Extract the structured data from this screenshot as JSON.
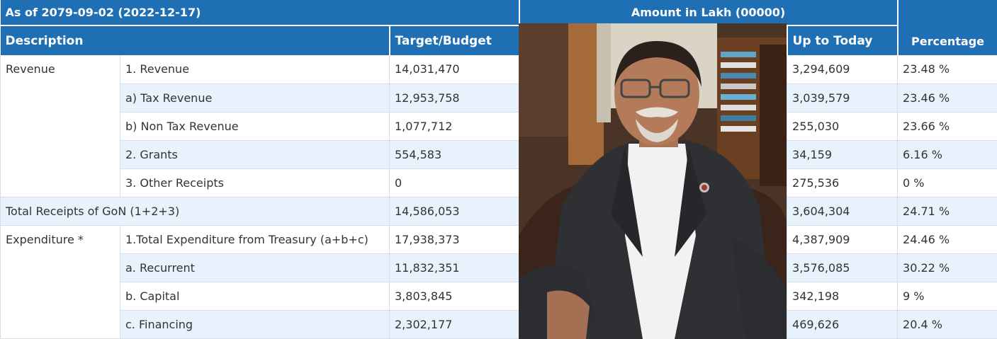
{
  "header": {
    "as_of": "As of 2079-09-02 (2022-12-17)",
    "amount_unit": "Amount in Lakh (00000)"
  },
  "columns": {
    "description": "Description",
    "target": "Target/Budget",
    "up_to_today": "Up to Today",
    "percentage": "Percentage"
  },
  "groups": {
    "revenue": "Revenue",
    "total": "Total Receipts of GoN (1+2+3)",
    "expenditure": "Expenditure *"
  },
  "rows": [
    {
      "item": "1. Revenue",
      "target": "14,031,470",
      "today": "3,294,609",
      "pct": "23.48 %"
    },
    {
      "item": "a) Tax Revenue",
      "target": "12,953,758",
      "today": "3,039,579",
      "pct": "23.46 %"
    },
    {
      "item": "b) Non Tax Revenue",
      "target": "1,077,712",
      "today": "255,030",
      "pct": "23.66 %"
    },
    {
      "item": "2. Grants",
      "target": "554,583",
      "today": "34,159",
      "pct": "6.16 %"
    },
    {
      "item": "3. Other Receipts",
      "target": "0",
      "today": "275,536",
      "pct": "0 %"
    },
    {
      "item": "",
      "target": "14,586,053",
      "today": "3,604,304",
      "pct": "24.71 %"
    },
    {
      "item": "1.Total Expenditure from Treasury (a+b+c)",
      "target": "17,938,373",
      "today": "4,387,909",
      "pct": "24.46 %"
    },
    {
      "item": "a. Recurrent",
      "target": "11,832,351",
      "today": "3,576,085",
      "pct": "30.22 %"
    },
    {
      "item": "b. Capital",
      "target": "3,803,845",
      "today": "342,198",
      "pct": "9 %"
    },
    {
      "item": "c. Financing",
      "target": "2,302,177",
      "today": "469,626",
      "pct": "20.4 %"
    }
  ],
  "colors": {
    "header_bg": "#1f6fb5",
    "row_alt_bg": "#e8f2fd",
    "text": "#333333"
  }
}
